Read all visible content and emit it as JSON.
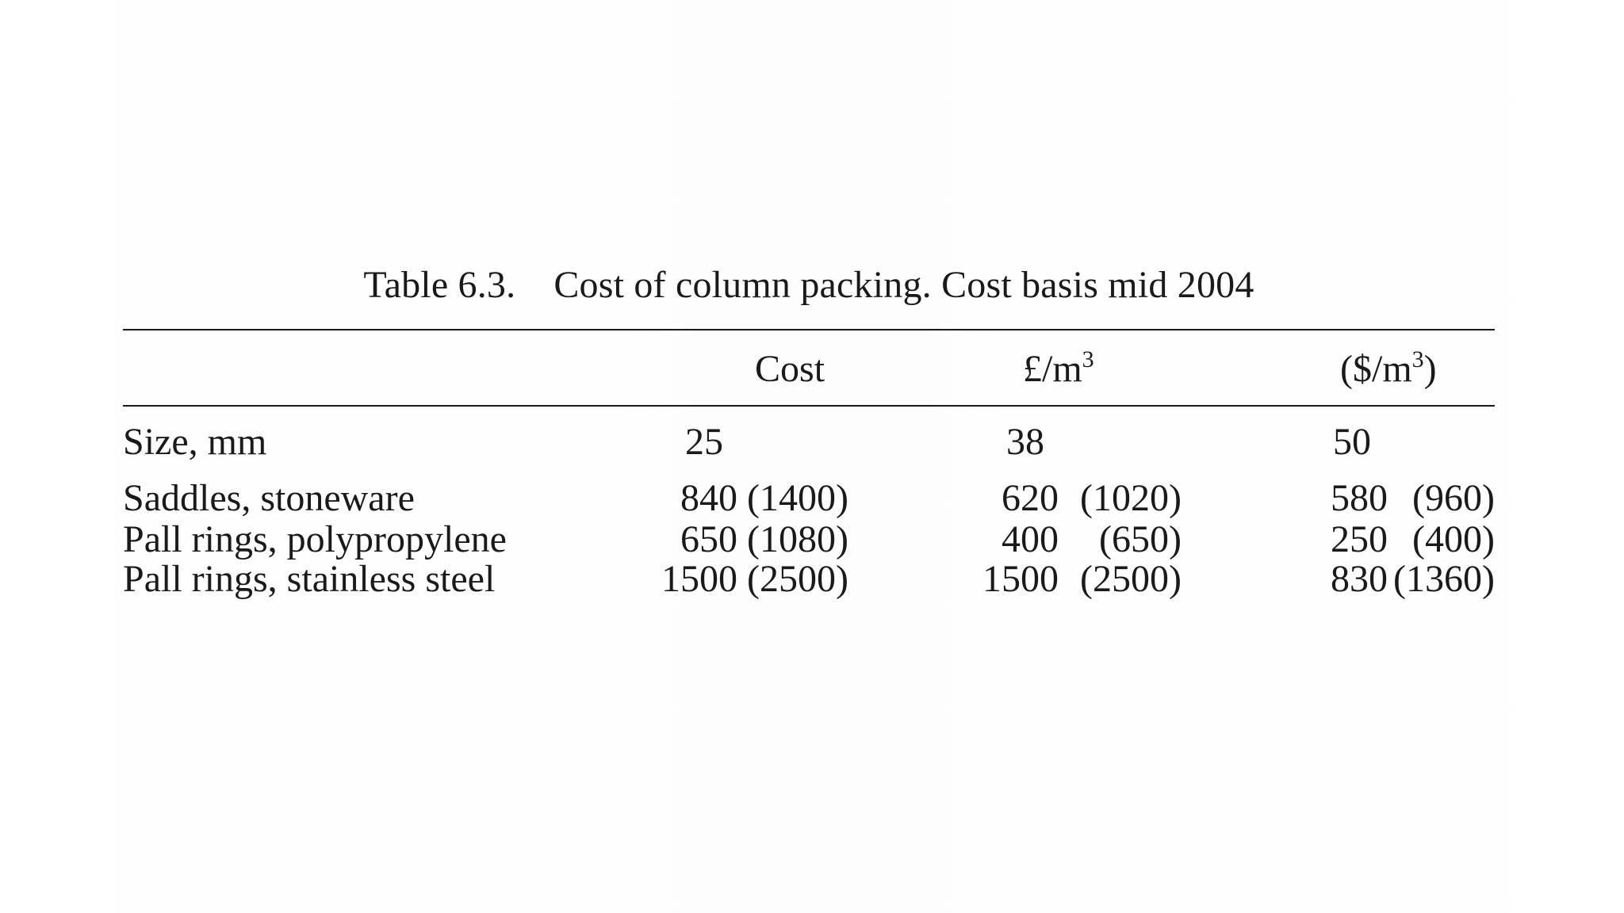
{
  "caption": {
    "label": "Table 6.3.",
    "title": "Cost of column packing. Cost basis mid 2004"
  },
  "header": {
    "cost": "Cost",
    "gbp_unit": "£/m",
    "gbp_exp": "3",
    "usd_open": "($/m",
    "usd_exp": "3",
    "usd_close": ")"
  },
  "size_row": {
    "label": "Size, mm",
    "sizes": [
      "25",
      "38",
      "50"
    ]
  },
  "rows": [
    {
      "label": "Saddles, stoneware",
      "values": [
        {
          "gbp": "840",
          "usd": "(1400)"
        },
        {
          "gbp": "620",
          "usd": "(1020)"
        },
        {
          "gbp": "580",
          "usd": "(960)"
        }
      ]
    },
    {
      "label": "Pall rings, polypropylene",
      "values": [
        {
          "gbp": "650",
          "usd": "(1080)"
        },
        {
          "gbp": "400",
          "usd": "(650)"
        },
        {
          "gbp": "250",
          "usd": "(400)"
        }
      ]
    },
    {
      "label": "Pall rings, stainless steel",
      "values": [
        {
          "gbp": "1500",
          "usd": "(2500)"
        },
        {
          "gbp": "1500",
          "usd": "(2500)"
        },
        {
          "gbp": "830",
          "usd": "(1360)"
        }
      ]
    }
  ]
}
